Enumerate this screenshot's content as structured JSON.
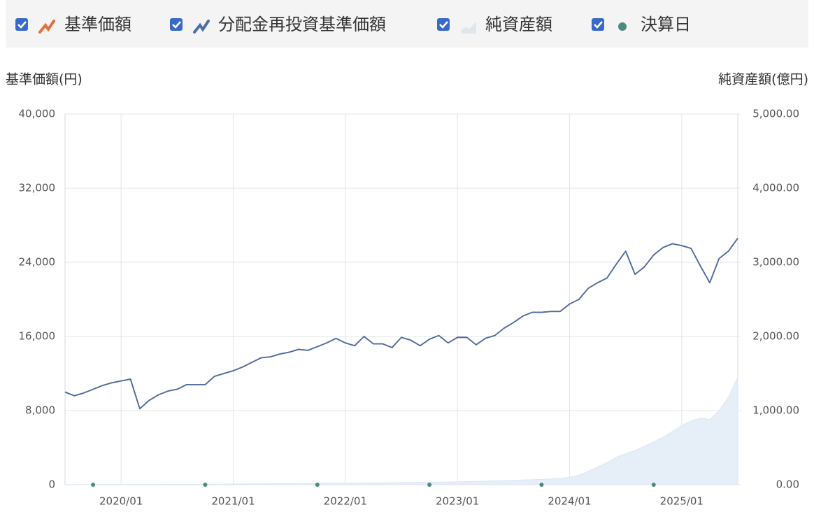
{
  "chart_data": {
    "type": "line",
    "ylabel": "基準価額(円)",
    "y2label": "純資産額(億円)",
    "grid": true,
    "x": [
      "2019/07",
      "2019/08",
      "2019/09",
      "2019/10",
      "2019/11",
      "2019/12",
      "2020/01",
      "2020/02",
      "2020/03",
      "2020/04",
      "2020/05",
      "2020/06",
      "2020/07",
      "2020/08",
      "2020/09",
      "2020/10",
      "2020/11",
      "2020/12",
      "2021/01",
      "2021/02",
      "2021/03",
      "2021/04",
      "2021/05",
      "2021/06",
      "2021/07",
      "2021/08",
      "2021/09",
      "2021/10",
      "2021/11",
      "2021/12",
      "2022/01",
      "2022/02",
      "2022/03",
      "2022/04",
      "2022/05",
      "2022/06",
      "2022/07",
      "2022/08",
      "2022/09",
      "2022/10",
      "2022/11",
      "2022/12",
      "2023/01",
      "2023/02",
      "2023/03",
      "2023/04",
      "2023/05",
      "2023/06",
      "2023/07",
      "2023/08",
      "2023/09",
      "2023/10",
      "2023/11",
      "2023/12",
      "2024/01",
      "2024/02",
      "2024/03",
      "2024/04",
      "2024/05",
      "2024/06",
      "2024/07",
      "2024/08",
      "2024/09",
      "2024/10",
      "2024/11",
      "2024/12",
      "2025/01",
      "2025/02",
      "2025/03",
      "2025/04",
      "2025/05",
      "2025/06",
      "2025/07"
    ],
    "xlim": [
      "2019/07",
      "2025/07"
    ],
    "xticks": [
      "2020/01",
      "2021/01",
      "2022/01",
      "2023/01",
      "2024/01",
      "2025/01"
    ],
    "ylim": [
      0,
      40000
    ],
    "yticks": [
      0,
      {
        "value": 8000,
        "label": "8,000"
      },
      {
        "value": 16000,
        "label": "16,000"
      },
      {
        "value": 24000,
        "label": "24,000"
      },
      {
        "value": 32000,
        "label": "32,000"
      },
      {
        "value": 40000,
        "label": "40,000"
      }
    ],
    "y2lim": [
      0,
      5000
    ],
    "y2ticks": [
      {
        "value": 0,
        "label": "0.00"
      },
      {
        "value": 1000,
        "label": "1,000.00"
      },
      {
        "value": 2000,
        "label": "2,000.00"
      },
      {
        "value": 3000,
        "label": "3,000.00"
      },
      {
        "value": 4000,
        "label": "4,000.00"
      },
      {
        "value": 5000,
        "label": "5,000.00"
      }
    ],
    "series": [
      {
        "name": "基準価額",
        "type": "line",
        "color": "#c8704a",
        "values": [
          10000,
          9600,
          9900,
          10300,
          10700,
          11000,
          11200,
          11400,
          8200,
          9100,
          9700,
          10100,
          10300,
          10800,
          10800,
          10800,
          11700,
          12000,
          12300,
          12700,
          13200,
          13700,
          13800,
          14100,
          14300,
          14600,
          14500,
          14900,
          15300,
          15800,
          15300,
          15000,
          16000,
          15200,
          15200,
          14800,
          15900,
          15600,
          15000,
          15700,
          16100,
          15300,
          15900,
          15900,
          15100,
          15800,
          16100,
          16900,
          17500,
          18200,
          18600,
          18600,
          18700,
          18700,
          19500,
          20000,
          21200,
          21800,
          22300,
          23800,
          25200,
          22700,
          23500,
          24800,
          25600,
          26000,
          25800,
          25500,
          23600,
          21800,
          24400,
          25200,
          26600
        ]
      },
      {
        "name": "分配金再投資基準価額",
        "type": "line",
        "color": "#4a6fa5",
        "values": [
          10000,
          9600,
          9900,
          10300,
          10700,
          11000,
          11200,
          11400,
          8200,
          9100,
          9700,
          10100,
          10300,
          10800,
          10800,
          10800,
          11700,
          12000,
          12300,
          12700,
          13200,
          13700,
          13800,
          14100,
          14300,
          14600,
          14500,
          14900,
          15300,
          15800,
          15300,
          15000,
          16000,
          15200,
          15200,
          14800,
          15900,
          15600,
          15000,
          15700,
          16100,
          15300,
          15900,
          15900,
          15100,
          15800,
          16100,
          16900,
          17500,
          18200,
          18600,
          18600,
          18700,
          18700,
          19500,
          20000,
          21200,
          21800,
          22300,
          23800,
          25200,
          22700,
          23500,
          24800,
          25600,
          26000,
          25800,
          25500,
          23600,
          21800,
          24400,
          25200,
          26600
        ]
      },
      {
        "name": "純資産額",
        "type": "area",
        "axis": "y2",
        "color": "#e6eff8",
        "values": [
          1,
          1,
          2,
          2,
          3,
          3,
          3,
          4,
          3,
          4,
          4,
          5,
          5,
          6,
          6,
          7,
          7,
          8,
          9,
          10,
          11,
          12,
          13,
          14,
          15,
          16,
          17,
          18,
          19,
          20,
          21,
          22,
          24,
          25,
          26,
          27,
          29,
          30,
          31,
          33,
          35,
          37,
          40,
          42,
          45,
          48,
          52,
          56,
          60,
          64,
          68,
          72,
          78,
          85,
          100,
          130,
          180,
          240,
          300,
          370,
          420,
          460,
          520,
          580,
          640,
          720,
          800,
          860,
          900,
          880,
          1000,
          1180,
          1450
        ]
      },
      {
        "name": "決算日",
        "type": "scatter",
        "color": "#4a8a80",
        "x": [
          "2019/10",
          "2020/10",
          "2021/10",
          "2022/10",
          "2023/10",
          "2024/10"
        ],
        "values": [
          0,
          0,
          0,
          0,
          0,
          0
        ]
      }
    ]
  }
}
